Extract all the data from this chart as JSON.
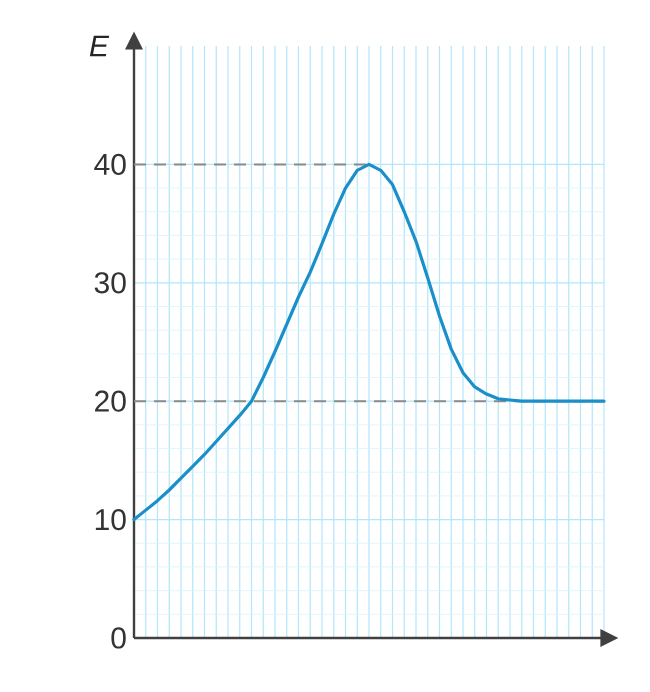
{
  "chart_data": {
    "type": "line",
    "ylabel": "E",
    "categories": [
      null,
      null,
      null,
      null,
      null,
      null,
      null,
      null,
      null,
      null,
      null,
      null,
      null,
      null,
      null,
      null,
      null,
      null,
      null,
      null,
      null,
      null,
      null,
      null,
      null,
      null,
      null,
      null,
      null,
      null,
      null,
      null,
      null,
      null,
      null,
      null,
      null,
      null,
      null,
      null,
      null
    ],
    "series": [
      {
        "color": "#1a8fc9",
        "values": [
          10,
          10.8,
          11.6,
          12.5,
          13.5,
          14.5,
          15.5,
          16.6,
          17.7,
          18.8,
          20,
          22,
          24.2,
          26.5,
          28.8,
          30.9,
          33.3,
          35.8,
          38,
          39.5,
          40,
          39.5,
          38.3,
          36,
          33.5,
          30.4,
          27.2,
          24.4,
          22.4,
          21.2,
          20.6,
          20.2,
          20.1,
          20,
          20,
          20,
          20,
          20,
          20,
          20,
          20
        ]
      }
    ],
    "ylim": [
      0,
      50
    ],
    "yticks": [
      0,
      10,
      20,
      30,
      40
    ],
    "tick_labels": "y",
    "grid": true,
    "marker": "none",
    "line_style": "solid",
    "ref_lines": [
      {
        "axis": "y",
        "value": 40,
        "color": "#8a8a8a",
        "line_style": "dashed"
      },
      {
        "axis": "y",
        "value": 20,
        "color": "#8a8a8a",
        "line_style": "dashed"
      }
    ]
  }
}
